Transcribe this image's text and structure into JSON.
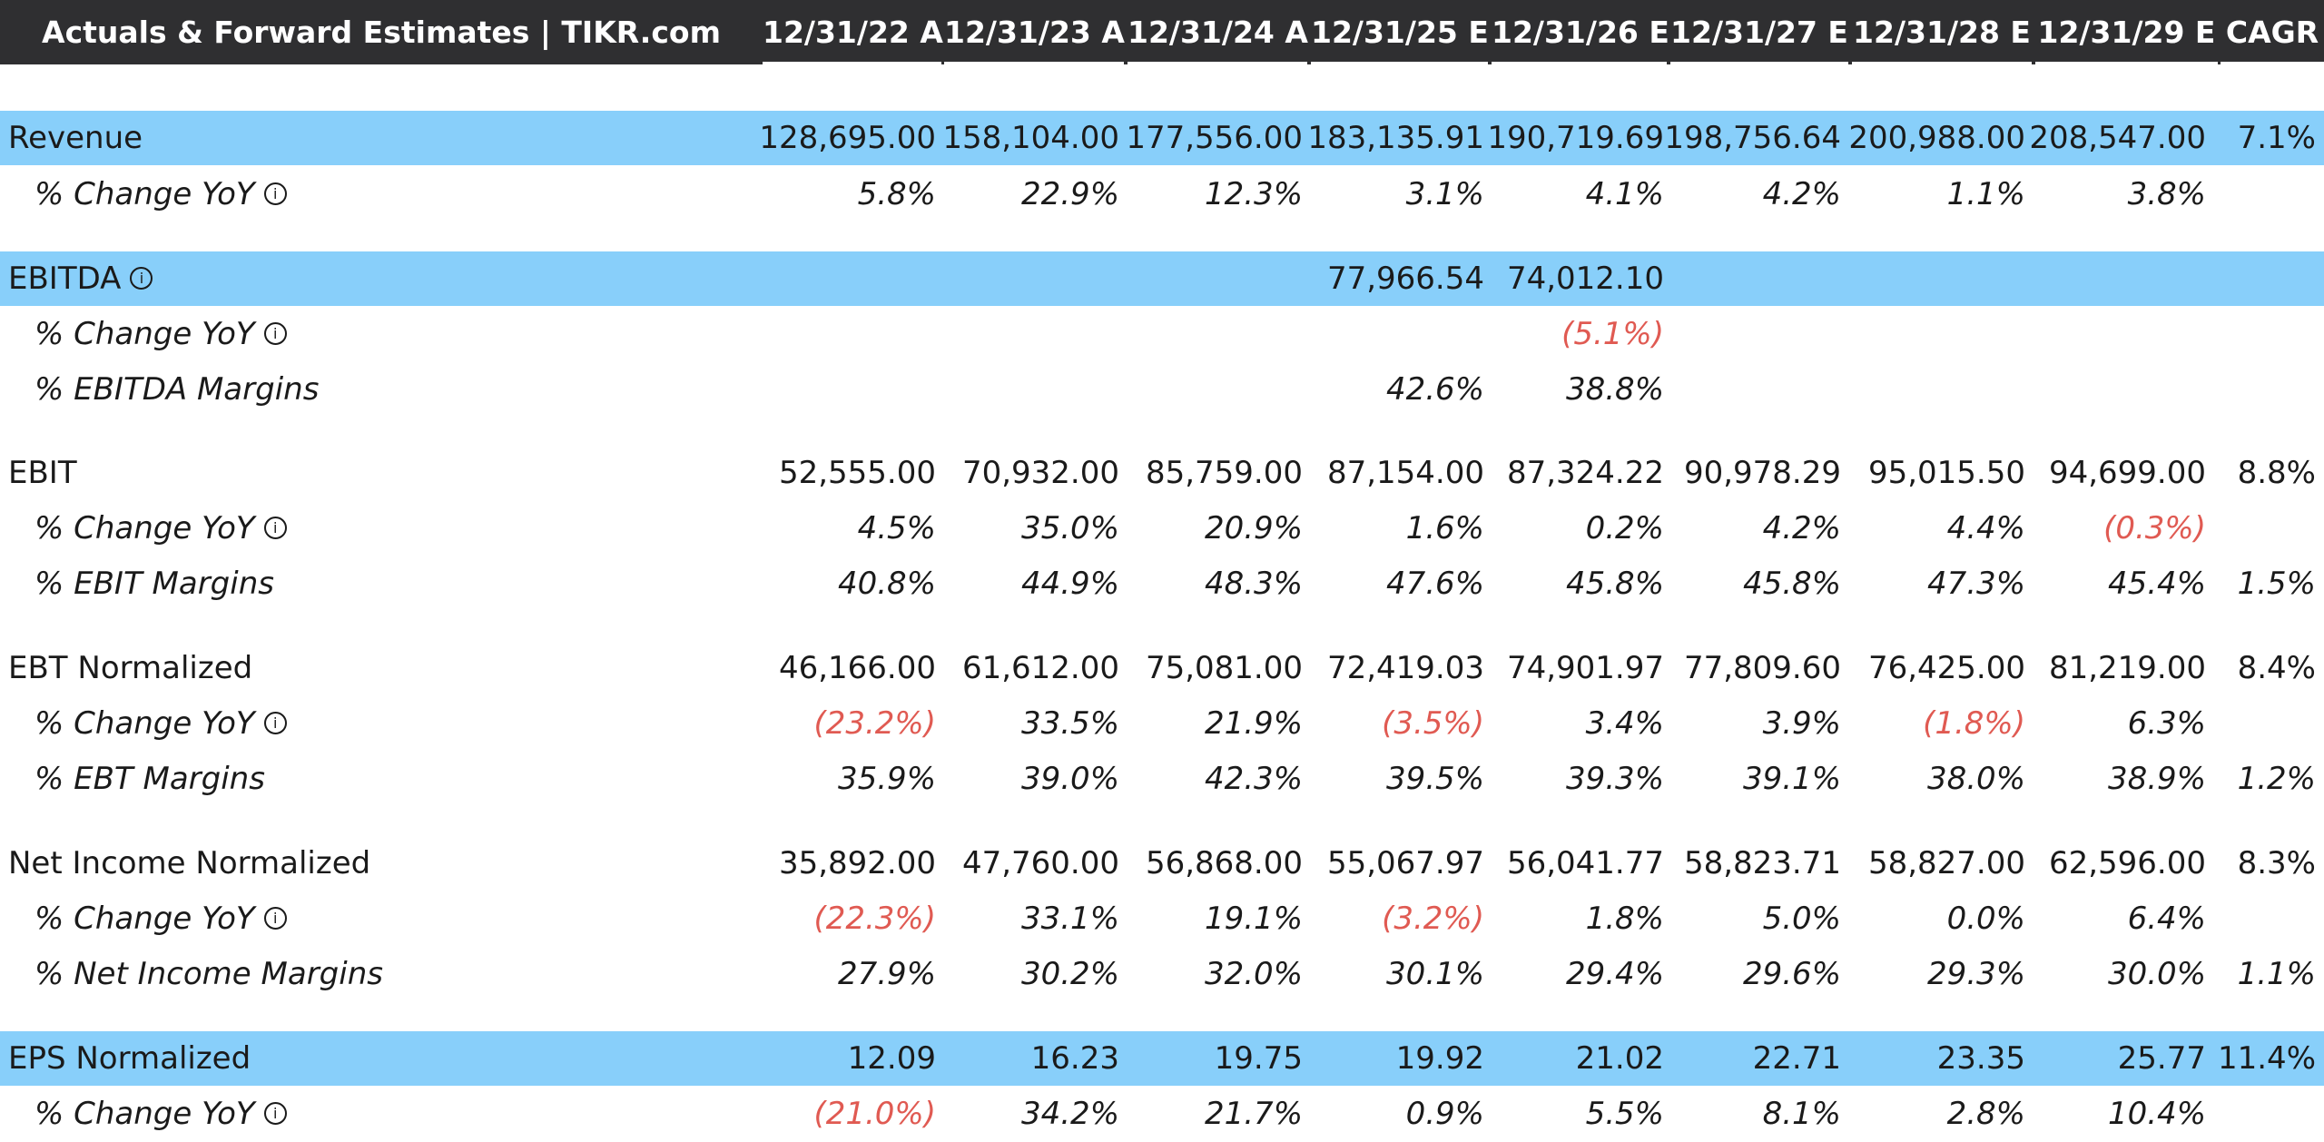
{
  "header": {
    "title": "Actuals & Forward Estimates | TIKR.com",
    "columns": [
      "12/31/22 A",
      "12/31/23 A",
      "12/31/24 A",
      "12/31/25 E",
      "12/31/26 E",
      "12/31/27 E",
      "12/31/28 E",
      "12/31/29 E",
      "CAGR"
    ]
  },
  "colors": {
    "header_bg": "#2f2f31",
    "highlight_band": "#88cffa",
    "negative": "#e05a52"
  },
  "icons": {
    "info": "info-icon"
  },
  "rows": [
    {
      "label": "Revenue",
      "type": "main",
      "highlight": true,
      "info": false,
      "values": [
        "128,695.00",
        "158,104.00",
        "177,556.00",
        "183,135.91",
        "190,719.69",
        "198,756.64",
        "200,988.00",
        "208,547.00",
        "7.1%"
      ]
    },
    {
      "label": "% Change YoY",
      "type": "sub",
      "highlight": false,
      "info": true,
      "values": [
        "5.8%",
        "22.9%",
        "12.3%",
        "3.1%",
        "4.1%",
        "4.2%",
        "1.1%",
        "3.8%",
        ""
      ]
    },
    {
      "label": "EBITDA",
      "type": "main",
      "highlight": true,
      "info": true,
      "values": [
        "",
        "",
        "",
        "77,966.54",
        "74,012.10",
        "",
        "",
        "",
        ""
      ]
    },
    {
      "label": "% Change YoY",
      "type": "sub",
      "highlight": false,
      "info": true,
      "values": [
        "",
        "",
        "",
        "",
        "(5.1%)",
        "",
        "",
        "",
        ""
      ]
    },
    {
      "label": "% EBITDA Margins",
      "type": "sub",
      "highlight": false,
      "info": false,
      "values": [
        "",
        "",
        "",
        "42.6%",
        "38.8%",
        "",
        "",
        "",
        ""
      ]
    },
    {
      "label": "EBIT",
      "type": "main",
      "highlight": false,
      "info": false,
      "values": [
        "52,555.00",
        "70,932.00",
        "85,759.00",
        "87,154.00",
        "87,324.22",
        "90,978.29",
        "95,015.50",
        "94,699.00",
        "8.8%"
      ]
    },
    {
      "label": "% Change YoY",
      "type": "sub",
      "highlight": false,
      "info": true,
      "values": [
        "4.5%",
        "35.0%",
        "20.9%",
        "1.6%",
        "0.2%",
        "4.2%",
        "4.4%",
        "(0.3%)",
        ""
      ]
    },
    {
      "label": "% EBIT Margins",
      "type": "sub",
      "highlight": false,
      "info": false,
      "values": [
        "40.8%",
        "44.9%",
        "48.3%",
        "47.6%",
        "45.8%",
        "45.8%",
        "47.3%",
        "45.4%",
        "1.5%"
      ]
    },
    {
      "label": "EBT Normalized",
      "type": "main",
      "highlight": false,
      "info": false,
      "values": [
        "46,166.00",
        "61,612.00",
        "75,081.00",
        "72,419.03",
        "74,901.97",
        "77,809.60",
        "76,425.00",
        "81,219.00",
        "8.4%"
      ]
    },
    {
      "label": "% Change YoY",
      "type": "sub",
      "highlight": false,
      "info": true,
      "values": [
        "(23.2%)",
        "33.5%",
        "21.9%",
        "(3.5%)",
        "3.4%",
        "3.9%",
        "(1.8%)",
        "6.3%",
        ""
      ]
    },
    {
      "label": "% EBT Margins",
      "type": "sub",
      "highlight": false,
      "info": false,
      "values": [
        "35.9%",
        "39.0%",
        "42.3%",
        "39.5%",
        "39.3%",
        "39.1%",
        "38.0%",
        "38.9%",
        "1.2%"
      ]
    },
    {
      "label": "Net Income Normalized",
      "type": "main",
      "highlight": false,
      "info": false,
      "values": [
        "35,892.00",
        "47,760.00",
        "56,868.00",
        "55,067.97",
        "56,041.77",
        "58,823.71",
        "58,827.00",
        "62,596.00",
        "8.3%"
      ]
    },
    {
      "label": "% Change YoY",
      "type": "sub",
      "highlight": false,
      "info": true,
      "values": [
        "(22.3%)",
        "33.1%",
        "19.1%",
        "(3.2%)",
        "1.8%",
        "5.0%",
        "0.0%",
        "6.4%",
        ""
      ]
    },
    {
      "label": "% Net Income Margins",
      "type": "sub",
      "highlight": false,
      "info": false,
      "values": [
        "27.9%",
        "30.2%",
        "32.0%",
        "30.1%",
        "29.4%",
        "29.6%",
        "29.3%",
        "30.0%",
        "1.1%"
      ]
    },
    {
      "label": "EPS Normalized",
      "type": "main",
      "highlight": true,
      "info": false,
      "values": [
        "12.09",
        "16.23",
        "19.75",
        "19.92",
        "21.02",
        "22.71",
        "23.35",
        "25.77",
        "11.4%"
      ]
    },
    {
      "label": "% Change YoY",
      "type": "sub",
      "highlight": false,
      "info": true,
      "values": [
        "(21.0%)",
        "34.2%",
        "21.7%",
        "0.9%",
        "5.5%",
        "8.1%",
        "2.8%",
        "10.4%",
        ""
      ]
    }
  ]
}
